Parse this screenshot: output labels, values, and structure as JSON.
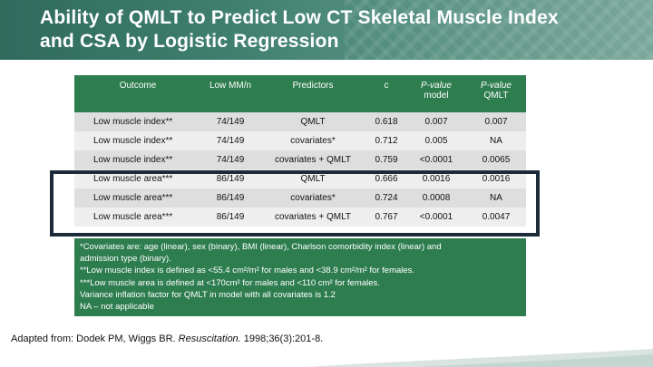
{
  "slide": {
    "title_line1": "Ability of QMLT to Predict Low CT Skeletal Muscle Index",
    "title_line2": "and CSA by Logistic Regression"
  },
  "table": {
    "headers": {
      "outcome": "Outcome",
      "low_mm": "Low MM/n",
      "predictors": "Predictors",
      "c": "c",
      "pvalue_model_a": "P-value",
      "pvalue_model_b": "model",
      "pvalue_qmlt_a": "P-value",
      "pvalue_qmlt_b": "QMLT"
    },
    "rows": [
      {
        "outcome": "Low muscle index**",
        "low_mm": "74/149",
        "predictors": "QMLT",
        "c": "0.618",
        "p_model": "0.007",
        "p_qmlt": "0.007"
      },
      {
        "outcome": "Low muscle index**",
        "low_mm": "74/149",
        "predictors": "covariates*",
        "c": "0.712",
        "p_model": "0.005",
        "p_qmlt": "NA"
      },
      {
        "outcome": "Low muscle index**",
        "low_mm": "74/149",
        "predictors": "covariates + QMLT",
        "c": "0.759",
        "p_model": "<0.0001",
        "p_qmlt": "0.0065"
      },
      {
        "outcome": "Low muscle area***",
        "low_mm": "86/149",
        "predictors": "QMLT",
        "c": "0.666",
        "p_model": "0.0016",
        "p_qmlt": "0.0016"
      },
      {
        "outcome": "Low muscle area***",
        "low_mm": "86/149",
        "predictors": "covariates*",
        "c": "0.724",
        "p_model": "0.0008",
        "p_qmlt": "NA"
      },
      {
        "outcome": "Low muscle area***",
        "low_mm": "86/149",
        "predictors": "covariates + QMLT",
        "c": "0.767",
        "p_model": "<0.0001",
        "p_qmlt": "0.0047"
      }
    ]
  },
  "footnotes": {
    "line1": "*Covariates are: age (linear), sex (binary), BMI (linear), Charlson comorbidity index (linear) and",
    "line2": "admission type (binary).",
    "line3": "**Low muscle index is defined as <55.4 cm²/m² for males and <38.9 cm²/m² for females.",
    "line4": "***Low muscle area is defined at <170cm² for males and <110 cm² for females.",
    "line5": "Variance inflation factor for QMLT in model with all covariates is 1.2",
    "line6": "NA – not applicable"
  },
  "source": {
    "prefix": "Adapted from: Dodek PM, Wiggs BR. ",
    "journal": "Resuscitation.",
    "suffix": " 1998;36(3):201-8."
  },
  "colors": {
    "header_green": "#2e7d4f",
    "highlight_border": "#1c2b3a"
  }
}
